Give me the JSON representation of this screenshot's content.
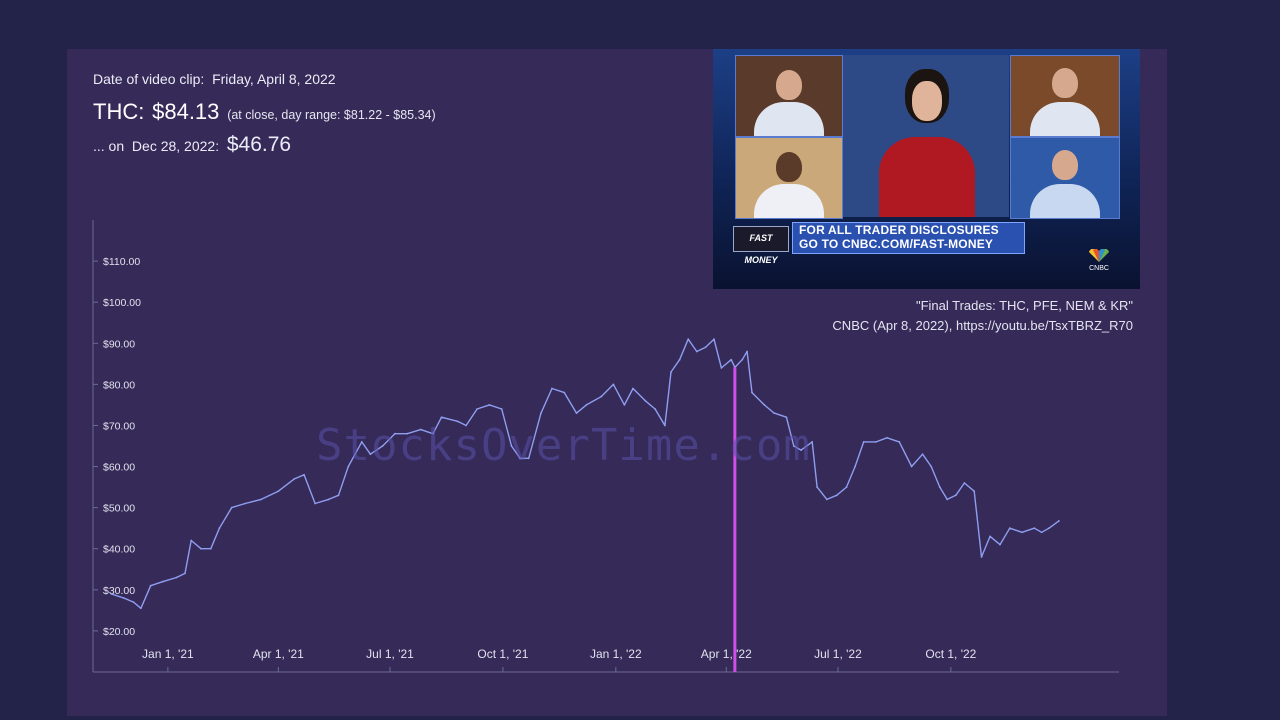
{
  "clip": {
    "date_label": "Date of video clip:",
    "date_value": "Friday, April 8, 2022",
    "ticker": "THC:",
    "close_price": "$84.13",
    "range_note": "(at close, day range: $81.22 - $85.34)",
    "later_prefix": "... on",
    "later_date": "Dec 28, 2022:",
    "later_price": "$46.76"
  },
  "video": {
    "banner_line1": "FOR ALL TRADER DISCLOSURES",
    "banner_line2": "GO TO CNBC.COM/FAST-MONEY",
    "show_logo": "FAST MONEY",
    "network_logo": "CNBC"
  },
  "source": {
    "title": "\"Final Trades: THC, PFE, NEM & KR\"",
    "citation": "CNBC (Apr 8, 2022), https://youtu.be/TsxTBRZ_R70"
  },
  "watermark": "StocksOverTime.com",
  "colors": {
    "background": "#23234a",
    "panel": "#352a58",
    "price_line": "#8f9ef0",
    "marker": "#d24ee8",
    "axis": "#6e6a94"
  },
  "chart_data": {
    "type": "line",
    "title": "",
    "xlabel": "",
    "ylabel": "",
    "x_range": [
      "2020-11-01",
      "2023-02-15"
    ],
    "ylim": [
      10,
      120
    ],
    "y_ticks": [
      20,
      30,
      40,
      50,
      60,
      70,
      80,
      90,
      100,
      110
    ],
    "y_tick_labels": [
      "$20.00",
      "$30.00",
      "$40.00",
      "$50.00",
      "$60.00",
      "$70.00",
      "$80.00",
      "$90.00",
      "$100.00",
      "$110.00"
    ],
    "x_ticks": [
      "2021-01-01",
      "2021-04-01",
      "2021-07-01",
      "2021-10-01",
      "2022-01-01",
      "2022-04-01",
      "2022-07-01",
      "2022-10-01"
    ],
    "x_tick_labels": [
      "Jan 1, '21",
      "Apr 1, '21",
      "Jul 1, '21",
      "Oct 1, '21",
      "Jan 1, '22",
      "Apr 1, '22",
      "Jul 1, '22",
      "Oct 1, '22"
    ],
    "grid": false,
    "marker_date": "2022-04-08",
    "series": [
      {
        "points": [
          [
            "2020-11-16",
            29
          ],
          [
            "2020-11-26",
            28
          ],
          [
            "2020-12-04",
            27
          ],
          [
            "2020-12-10",
            25.5
          ],
          [
            "2020-12-18",
            31
          ],
          [
            "2020-12-28",
            32
          ],
          [
            "2021-01-08",
            33
          ],
          [
            "2021-01-15",
            34
          ],
          [
            "2021-01-20",
            42
          ],
          [
            "2021-01-28",
            40
          ],
          [
            "2021-02-05",
            40
          ],
          [
            "2021-02-12",
            45
          ],
          [
            "2021-02-22",
            50
          ],
          [
            "2021-03-05",
            51
          ],
          [
            "2021-03-18",
            52
          ],
          [
            "2021-04-01",
            54
          ],
          [
            "2021-04-14",
            57
          ],
          [
            "2021-04-22",
            58
          ],
          [
            "2021-05-01",
            51
          ],
          [
            "2021-05-12",
            52
          ],
          [
            "2021-05-20",
            53
          ],
          [
            "2021-05-28",
            60
          ],
          [
            "2021-06-08",
            66
          ],
          [
            "2021-06-15",
            63
          ],
          [
            "2021-06-25",
            65
          ],
          [
            "2021-07-05",
            68
          ],
          [
            "2021-07-15",
            68
          ],
          [
            "2021-07-26",
            69
          ],
          [
            "2021-08-05",
            68
          ],
          [
            "2021-08-12",
            72
          ],
          [
            "2021-08-25",
            71
          ],
          [
            "2021-09-01",
            70
          ],
          [
            "2021-09-10",
            74
          ],
          [
            "2021-09-20",
            75
          ],
          [
            "2021-09-30",
            74
          ],
          [
            "2021-10-08",
            65
          ],
          [
            "2021-10-15",
            62
          ],
          [
            "2021-10-22",
            62
          ],
          [
            "2021-11-01",
            73
          ],
          [
            "2021-11-10",
            79
          ],
          [
            "2021-11-20",
            78
          ],
          [
            "2021-11-30",
            73
          ],
          [
            "2021-12-08",
            75
          ],
          [
            "2021-12-20",
            77
          ],
          [
            "2021-12-30",
            80
          ],
          [
            "2022-01-08",
            75
          ],
          [
            "2022-01-15",
            79
          ],
          [
            "2022-01-25",
            76
          ],
          [
            "2022-02-02",
            74
          ],
          [
            "2022-02-10",
            70
          ],
          [
            "2022-02-15",
            83
          ],
          [
            "2022-02-22",
            86
          ],
          [
            "2022-03-01",
            91
          ],
          [
            "2022-03-08",
            88
          ],
          [
            "2022-03-15",
            89
          ],
          [
            "2022-03-22",
            91
          ],
          [
            "2022-03-28",
            84
          ],
          [
            "2022-04-05",
            86
          ],
          [
            "2022-04-08",
            84.13
          ],
          [
            "2022-04-14",
            86
          ],
          [
            "2022-04-18",
            88
          ],
          [
            "2022-04-22",
            78
          ],
          [
            "2022-05-02",
            75
          ],
          [
            "2022-05-10",
            73
          ],
          [
            "2022-05-20",
            72
          ],
          [
            "2022-05-26",
            65
          ],
          [
            "2022-06-01",
            64
          ],
          [
            "2022-06-10",
            66
          ],
          [
            "2022-06-14",
            55
          ],
          [
            "2022-06-22",
            52
          ],
          [
            "2022-06-30",
            53
          ],
          [
            "2022-07-08",
            55
          ],
          [
            "2022-07-15",
            60
          ],
          [
            "2022-07-22",
            66
          ],
          [
            "2022-08-01",
            66
          ],
          [
            "2022-08-10",
            67
          ],
          [
            "2022-08-20",
            66
          ],
          [
            "2022-08-30",
            60
          ],
          [
            "2022-09-08",
            63
          ],
          [
            "2022-09-15",
            60
          ],
          [
            "2022-09-22",
            55
          ],
          [
            "2022-09-28",
            52
          ],
          [
            "2022-10-05",
            53
          ],
          [
            "2022-10-12",
            56
          ],
          [
            "2022-10-20",
            54
          ],
          [
            "2022-10-26",
            38
          ],
          [
            "2022-11-02",
            43
          ],
          [
            "2022-11-10",
            41
          ],
          [
            "2022-11-18",
            45
          ],
          [
            "2022-11-28",
            44
          ],
          [
            "2022-12-08",
            45
          ],
          [
            "2022-12-14",
            44
          ],
          [
            "2022-12-20",
            45
          ],
          [
            "2022-12-28",
            46.76
          ]
        ]
      }
    ]
  }
}
